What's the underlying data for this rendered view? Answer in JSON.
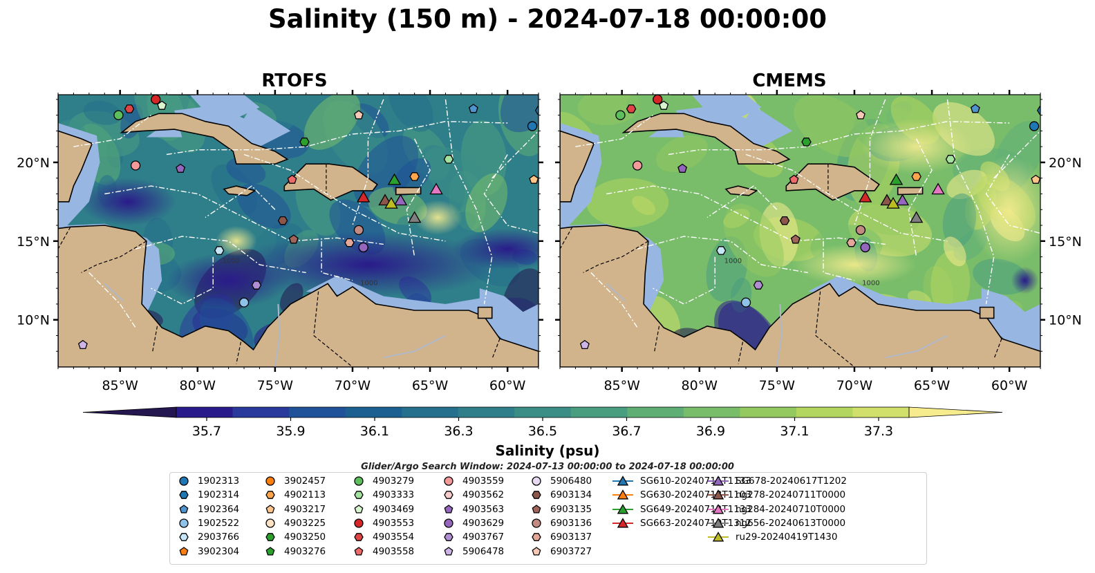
{
  "title": "Salinity (150 m) - 2024-07-18 00:00:00",
  "panels": [
    {
      "title": "RTOFS"
    },
    {
      "title": "CMEMS"
    }
  ],
  "colors": {
    "land": "#d2b48c",
    "shelf": "#97b6e1",
    "colormap": [
      "#24164f",
      "#2a1b8a",
      "#2a3a9c",
      "#1f5298",
      "#1b6090",
      "#25708c",
      "#2f7f8a",
      "#3a8e86",
      "#4a9e80",
      "#5fae76",
      "#79bd6a",
      "#94c95f",
      "#b3d65e",
      "#d0e06a",
      "#f6ec8e"
    ]
  },
  "colorbar": {
    "label": "Salinity (psu)",
    "ticks": [
      "35.7",
      "35.9",
      "36.1",
      "36.3",
      "36.5",
      "36.7",
      "36.9",
      "37.1",
      "37.3"
    ],
    "range": [
      35.7,
      37.3
    ],
    "extend": "both"
  },
  "axes": {
    "x_ticks": [
      "85°W",
      "80°W",
      "75°W",
      "70°W",
      "65°W",
      "60°W"
    ],
    "x_values": [
      -85,
      -80,
      -75,
      -70,
      -65,
      -60
    ],
    "y_ticks": [
      "20°N",
      "15°N",
      "10°N"
    ],
    "y_values": [
      20,
      15,
      10
    ],
    "lon_range": [
      -89,
      -58
    ],
    "lat_range": [
      7,
      24.3
    ]
  },
  "contour_labels": [
    "1000",
    "1000"
  ],
  "window_note": "Glider/Argo Search Window: 2024-07-13 00:00:00 to 2024-07-18 00:00:00",
  "chart_data": {
    "type": "map",
    "variable": "salinity",
    "depth": "150 m",
    "datetime": "2024-07-18 00:00:00",
    "units": "psu",
    "platforms": [
      {
        "id": "1902313",
        "kind": "argo",
        "marker": "circle",
        "color": "#1f77b4",
        "lon": -58.4,
        "lat": 22.3
      },
      {
        "id": "1902314",
        "kind": "argo",
        "marker": "hexagon",
        "color": "#1f77b4",
        "lon": -57.9,
        "lat": 23.3
      },
      {
        "id": "1902364",
        "kind": "argo",
        "marker": "pentagon",
        "color": "#4f94cd",
        "lon": -62.2,
        "lat": 23.4
      },
      {
        "id": "1902522",
        "kind": "argo",
        "marker": "circle",
        "color": "#8fc2e8",
        "lon": -77.0,
        "lat": 11.1
      },
      {
        "id": "2903766",
        "kind": "argo",
        "marker": "hexagon",
        "color": "#c6e6f7",
        "lon": -78.6,
        "lat": 14.4
      },
      {
        "id": "3902304",
        "kind": "argo",
        "marker": "pentagon",
        "color": "#ff7f0e",
        "lon": null,
        "lat": null
      },
      {
        "id": "3902457",
        "kind": "argo",
        "marker": "circle",
        "color": "#ff7f0e",
        "lon": null,
        "lat": null
      },
      {
        "id": "4902113",
        "kind": "argo",
        "marker": "hexagon",
        "color": "#ffa64d",
        "lon": -66.0,
        "lat": 19.1
      },
      {
        "id": "4903217",
        "kind": "argo",
        "marker": "pentagon",
        "color": "#ffc58a",
        "lon": -58.3,
        "lat": 18.9
      },
      {
        "id": "4903225",
        "kind": "argo",
        "marker": "circle",
        "color": "#ffe2c4",
        "lon": null,
        "lat": null
      },
      {
        "id": "4903250",
        "kind": "argo",
        "marker": "hexagon",
        "color": "#2ca02c",
        "lon": -73.1,
        "lat": 21.3
      },
      {
        "id": "4903276",
        "kind": "argo",
        "marker": "pentagon",
        "color": "#2ca02c",
        "lon": null,
        "lat": null
      },
      {
        "id": "4903279",
        "kind": "argo",
        "marker": "circle",
        "color": "#5cbe5c",
        "lon": -85.1,
        "lat": 23.0
      },
      {
        "id": "4903333",
        "kind": "argo",
        "marker": "hexagon",
        "color": "#a3e39f",
        "lon": -63.8,
        "lat": 20.2
      },
      {
        "id": "4903469",
        "kind": "argo",
        "marker": "pentagon",
        "color": "#d9f5cf",
        "lon": -82.3,
        "lat": 23.6
      },
      {
        "id": "4903553",
        "kind": "argo",
        "marker": "circle",
        "color": "#d62728",
        "lon": -82.7,
        "lat": 24.0
      },
      {
        "id": "4903554",
        "kind": "argo",
        "marker": "hexagon",
        "color": "#e04545",
        "lon": -84.4,
        "lat": 23.4
      },
      {
        "id": "4903558",
        "kind": "argo",
        "marker": "pentagon",
        "color": "#ef6b6b",
        "lon": -73.9,
        "lat": 18.9
      },
      {
        "id": "4903559",
        "kind": "argo",
        "marker": "circle",
        "color": "#f59a9a",
        "lon": -84.0,
        "lat": 19.8
      },
      {
        "id": "4903562",
        "kind": "argo",
        "marker": "hexagon",
        "color": "#f9cccc",
        "lon": null,
        "lat": null
      },
      {
        "id": "4903563",
        "kind": "argo",
        "marker": "pentagon",
        "color": "#9467bd",
        "lon": -81.1,
        "lat": 19.6
      },
      {
        "id": "4903629",
        "kind": "argo",
        "marker": "circle",
        "color": "#9467bd",
        "lon": -69.3,
        "lat": 14.6
      },
      {
        "id": "4903767",
        "kind": "argo",
        "marker": "hexagon",
        "color": "#b08ed2",
        "lon": -76.2,
        "lat": 12.2
      },
      {
        "id": "5906478",
        "kind": "argo",
        "marker": "pentagon",
        "color": "#cdb4e6",
        "lon": -87.4,
        "lat": 8.4
      },
      {
        "id": "5906480",
        "kind": "argo",
        "marker": "circle",
        "color": "#e6d9f3",
        "lon": null,
        "lat": null
      },
      {
        "id": "6903134",
        "kind": "argo",
        "marker": "hexagon",
        "color": "#8c564b",
        "lon": -74.5,
        "lat": 16.3
      },
      {
        "id": "6903135",
        "kind": "argo",
        "marker": "pentagon",
        "color": "#a0645a",
        "lon": -73.8,
        "lat": 15.1
      },
      {
        "id": "6903136",
        "kind": "argo",
        "marker": "circle",
        "color": "#c28a80",
        "lon": -69.6,
        "lat": 15.7
      },
      {
        "id": "6903137",
        "kind": "argo",
        "marker": "hexagon",
        "color": "#e3a89a",
        "lon": -70.2,
        "lat": 14.9
      },
      {
        "id": "6903727",
        "kind": "argo",
        "marker": "pentagon",
        "color": "#f7c9b6",
        "lon": -69.6,
        "lat": 23.0
      },
      {
        "id": "SG610-20240711T1133",
        "kind": "glider",
        "marker": "triangle",
        "color": "#1f77b4",
        "lon": null,
        "lat": null
      },
      {
        "id": "SG630-20240713T1103",
        "kind": "glider",
        "marker": "triangle",
        "color": "#ff7f0e",
        "lon": null,
        "lat": null
      },
      {
        "id": "SG649-20240712T1133",
        "kind": "glider",
        "marker": "triangle",
        "color": "#2ca02c",
        "lon": -67.3,
        "lat": 18.9
      },
      {
        "id": "SG663-20240710T1312",
        "kind": "glider",
        "marker": "triangle",
        "color": "#d62728",
        "lon": -69.3,
        "lat": 17.8
      },
      {
        "id": "SG678-20240617T1202",
        "kind": "glider",
        "marker": "triangle",
        "color": "#9467bd",
        "lon": -66.9,
        "lat": 17.6
      },
      {
        "id": "ng278-20240711T0000",
        "kind": "glider",
        "marker": "triangle",
        "color": "#8c564b",
        "lon": -67.9,
        "lat": 17.6
      },
      {
        "id": "ng284-20240710T0000",
        "kind": "glider",
        "marker": "triangle",
        "color": "#e377c2",
        "lon": -64.6,
        "lat": 18.3
      },
      {
        "id": "ng656-20240613T0000",
        "kind": "glider",
        "marker": "triangle",
        "color": "#7f7f7f",
        "lon": -66.0,
        "lat": 16.5
      },
      {
        "id": "ru29-20240419T1430",
        "kind": "glider",
        "marker": "triangle",
        "color": "#bcbd22",
        "lon": -67.5,
        "lat": 17.4
      }
    ]
  }
}
